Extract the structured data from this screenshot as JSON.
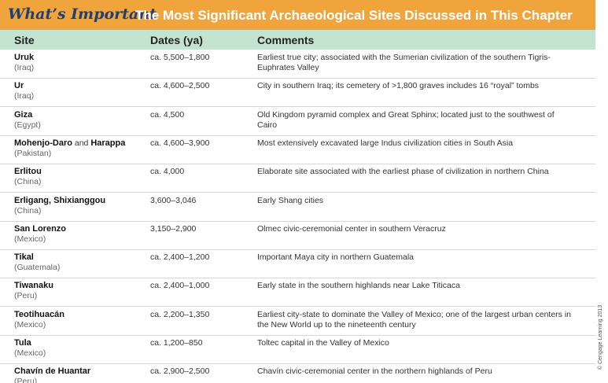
{
  "header": {
    "label": "What’s Important",
    "title": "The Most Significant Archaeological Sites Discussed in This Chapter"
  },
  "table": {
    "columns": [
      "Site",
      "Dates (ya)",
      "Comments"
    ],
    "rows": [
      {
        "site": "Uruk",
        "country": "(Iraq)",
        "dates": "ca. 5,500–1,800",
        "comments": "Earliest true city; associated with the Sumerian civilization of the southern Tigris-Euphrates Valley"
      },
      {
        "site": "Ur",
        "country": "(Iraq)",
        "dates": "ca. 4,600–2,500",
        "comments": "City in southern Iraq; its cemetery of >1,800 graves includes 16 “royal” tombs"
      },
      {
        "site": "Giza",
        "country": "(Egypt)",
        "dates": "ca. 4,500",
        "comments": "Old Kingdom pyramid complex and Great Sphinx; located just to the southwest of Cairo"
      },
      {
        "site": "Mohenjo-Daro",
        "joiner": "and",
        "site2": "Harappa",
        "country": "(Pakistan)",
        "dates": "ca. 4,600–3,900",
        "comments": "Most extensively excavated large Indus civilization cities in South Asia"
      },
      {
        "site": "Erlitou",
        "country": "(China)",
        "dates": "ca. 4,000",
        "comments": "Elaborate site associated with the earliest phase of civilization in northern China"
      },
      {
        "site": "Erligang, Shixianggou",
        "country": "(China)",
        "dates": "3,600–3,046",
        "comments": "Early Shang cities"
      },
      {
        "site": "San Lorenzo",
        "country": "(Mexico)",
        "dates": "3,150–2,900",
        "comments": "Olmec civic-ceremonial center in southern Veracruz"
      },
      {
        "site": "Tikal",
        "country": "(Guatemala)",
        "dates": "ca. 2,400–1,200",
        "comments": "Important Maya city in northern Guatemala"
      },
      {
        "site": "Tiwanaku",
        "country": "(Peru)",
        "dates": "ca. 2,400–1,000",
        "comments": "Early state in the southern highlands near Lake Titicaca"
      },
      {
        "site": "Teotihuacán",
        "country": "(Mexico)",
        "dates": "ca. 2,200–1,350",
        "comments": "Earliest city-state to dominate the Valley of Mexico; one of the largest urban centers in the New World up to the nineteenth century"
      },
      {
        "site": "Tula",
        "country": "(Mexico)",
        "dates": "ca. 1,200–850",
        "comments": "Toltec capital in the Valley of Mexico"
      },
      {
        "site": "Chavín de Huantar",
        "country": "(Peru)",
        "dates": "ca. 2,900–2,500",
        "comments": "Chavín civic-ceremonial center in the northern highlands of Peru"
      }
    ]
  },
  "credit": "© Cengage Learning 2013"
}
